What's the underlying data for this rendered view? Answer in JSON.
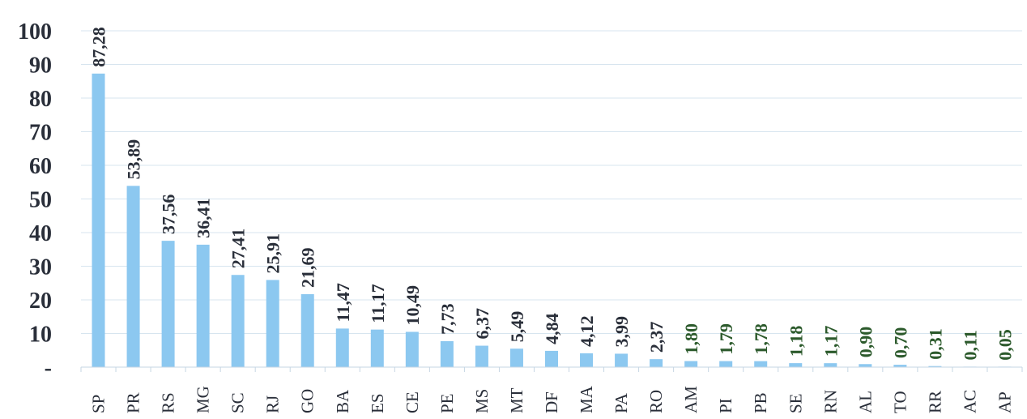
{
  "chart_data": {
    "type": "bar",
    "title": "",
    "xlabel": "",
    "ylabel": "",
    "ylim": [
      0,
      100
    ],
    "yticks": [
      0,
      10,
      20,
      30,
      40,
      50,
      60,
      70,
      80,
      90,
      100
    ],
    "ytick_labels": [
      "-",
      "10",
      "20",
      "30",
      "40",
      "50",
      "60",
      "70",
      "80",
      "90",
      "100"
    ],
    "grid": true,
    "legend": "none",
    "bar_color": "#8cc8f0",
    "label_color_large": "#2a2f3a",
    "label_color_small": "#2c5a2c",
    "categories": [
      "SP",
      "PR",
      "RS",
      "MG",
      "SC",
      "RJ",
      "GO",
      "BA",
      "ES",
      "CE",
      "PE",
      "MS",
      "MT",
      "DF",
      "MA",
      "PA",
      "RO",
      "AM",
      "PI",
      "PB",
      "SE",
      "RN",
      "AL",
      "TO",
      "RR",
      "AC",
      "AP"
    ],
    "values": [
      87.28,
      53.89,
      37.56,
      36.41,
      27.41,
      25.91,
      21.69,
      11.47,
      11.17,
      10.49,
      7.73,
      6.37,
      5.49,
      4.84,
      4.12,
      3.99,
      2.37,
      1.8,
      1.79,
      1.78,
      1.18,
      1.17,
      0.9,
      0.7,
      0.31,
      0.11,
      0.05
    ],
    "value_labels": [
      "87,28",
      "53,89",
      "37,56",
      "36,41",
      "27,41",
      "25,91",
      "21,69",
      "11,47",
      "11,17",
      "10,49",
      "7,73",
      "6,37",
      "5,49",
      "4,84",
      "4,12",
      "3,99",
      "2,37",
      "1,80",
      "1,79",
      "1,78",
      "1,18",
      "1,17",
      "0,90",
      "0,70",
      "0,31",
      "0,11",
      "0,05"
    ]
  }
}
